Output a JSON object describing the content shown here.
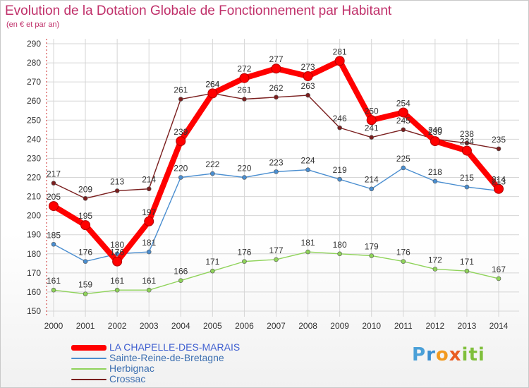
{
  "title": "Evolution de la Dotation Globale de Fonctionnement par Habitant",
  "subtitle": "(en € et par an)",
  "logo_text": "Proxiti",
  "chart_data": {
    "type": "line",
    "title": "Evolution de la Dotation Globale de Fonctionnement par Habitant",
    "subtitle": "(en € et par an)",
    "x": [
      "2000",
      "2001",
      "2002",
      "2003",
      "2004",
      "2005",
      "2006",
      "2007",
      "2008",
      "2009",
      "2010",
      "2011",
      "2012",
      "2013",
      "2014"
    ],
    "ylim": [
      150,
      290
    ],
    "yticks": [
      150,
      160,
      170,
      180,
      190,
      200,
      210,
      220,
      230,
      240,
      250,
      260,
      270,
      280,
      290
    ],
    "grid": true,
    "legend_position": "bottom-left",
    "series": [
      {
        "name": "LA CHAPELLE-DES-MARAIS",
        "color": "#ff0000",
        "values": [
          205,
          195,
          176,
          197,
          239,
          264,
          272,
          277,
          273,
          281,
          250,
          254,
          239,
          234,
          214
        ]
      },
      {
        "name": "Sainte-Reine-de-Bretagne",
        "color": "#4a8ed0",
        "values": [
          185,
          176,
          180,
          181,
          220,
          222,
          220,
          223,
          224,
          219,
          214,
          225,
          218,
          215,
          213
        ]
      },
      {
        "name": "Herbignac",
        "color": "#8fd35a",
        "values": [
          161,
          159,
          161,
          161,
          166,
          171,
          176,
          177,
          181,
          180,
          179,
          176,
          172,
          171,
          167
        ]
      },
      {
        "name": "Crossac",
        "color": "#7a1e1e",
        "values": [
          217,
          209,
          213,
          214,
          261,
          264,
          261,
          262,
          263,
          246,
          241,
          245,
          240,
          238,
          235
        ]
      }
    ]
  }
}
